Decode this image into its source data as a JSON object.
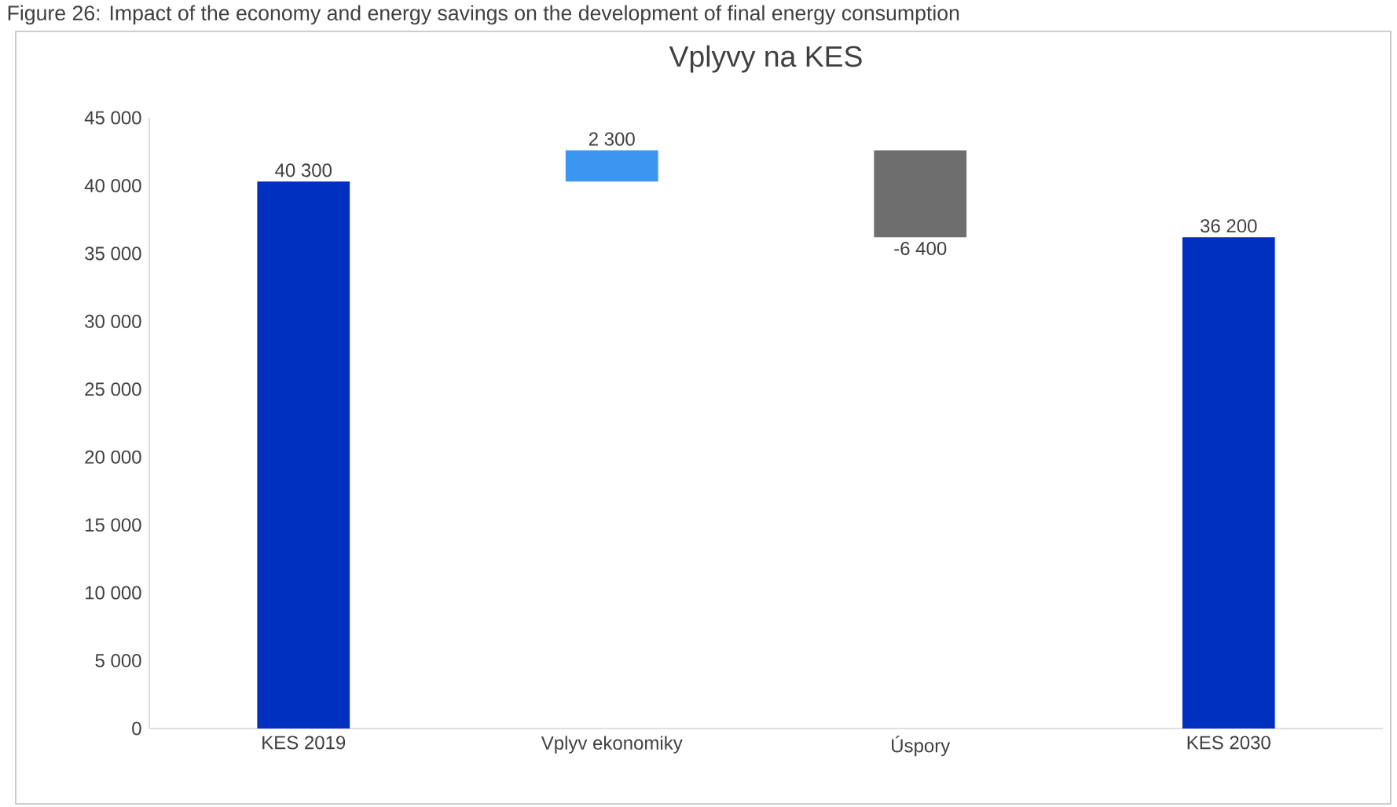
{
  "chart_data": {
    "type": "bar",
    "title": "Vplyvy na KES",
    "annotations": [
      "Figure 26: Impact of the economy and energy savings on the development of final energy consumption"
    ],
    "categories": [
      "KES 2019",
      "Vplyv ekonomiky",
      "Úspory",
      "KES 2030"
    ],
    "values": [
      40300,
      2300,
      -6400,
      36200
    ],
    "base": [
      0,
      40300,
      42600,
      0
    ],
    "colors": [
      "#0030c0",
      "#3a96f0",
      "#6e6e6e",
      "#0030c0"
    ],
    "value_labels": [
      "40 300",
      "2 300",
      "-6 400",
      "36 200"
    ],
    "ylim": [
      0,
      45000
    ],
    "yticks": [
      {
        "value": 0,
        "label": "0"
      },
      {
        "value": 5000,
        "label": "5 000"
      },
      {
        "value": 10000,
        "label": "10 000"
      },
      {
        "value": 15000,
        "label": "15 000"
      },
      {
        "value": 20000,
        "label": "20 000"
      },
      {
        "value": 25000,
        "label": "25 000"
      },
      {
        "value": 30000,
        "label": "30 000"
      },
      {
        "value": 35000,
        "label": "35 000"
      },
      {
        "value": 40000,
        "label": "40 000"
      },
      {
        "value": 45000,
        "label": "45 000"
      }
    ]
  }
}
